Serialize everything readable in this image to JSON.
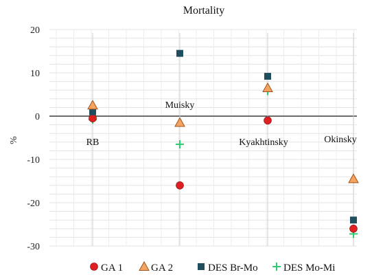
{
  "chart_data": {
    "type": "scatter",
    "title": "Mortality",
    "xlabel": "",
    "ylabel": "%",
    "ylim": [
      -30,
      20
    ],
    "yticks": [
      20,
      10,
      0,
      -10,
      -20,
      -30
    ],
    "grid": true,
    "legend_position": "bottom",
    "categories": [
      "RB",
      "Muisky",
      "Kyakhtinsky",
      "Okinsky"
    ],
    "series": [
      {
        "name": "GA 1",
        "marker": "circle",
        "color": "#e02020",
        "values": [
          -0.5,
          -16,
          -1,
          -26
        ]
      },
      {
        "name": "GA 2",
        "marker": "triangle",
        "color": "#f4a460",
        "values": [
          2.5,
          -1.5,
          6.5,
          -14.5
        ]
      },
      {
        "name": "DES Br-Mo",
        "marker": "square",
        "color": "#1f4e5f",
        "values": [
          1,
          14.5,
          9.2,
          -24
        ]
      },
      {
        "name": "DES Mo-Mi",
        "marker": "plus",
        "color": "#2ecc71",
        "values": [
          -0.8,
          -6.5,
          5.8,
          -27.2
        ]
      }
    ]
  }
}
